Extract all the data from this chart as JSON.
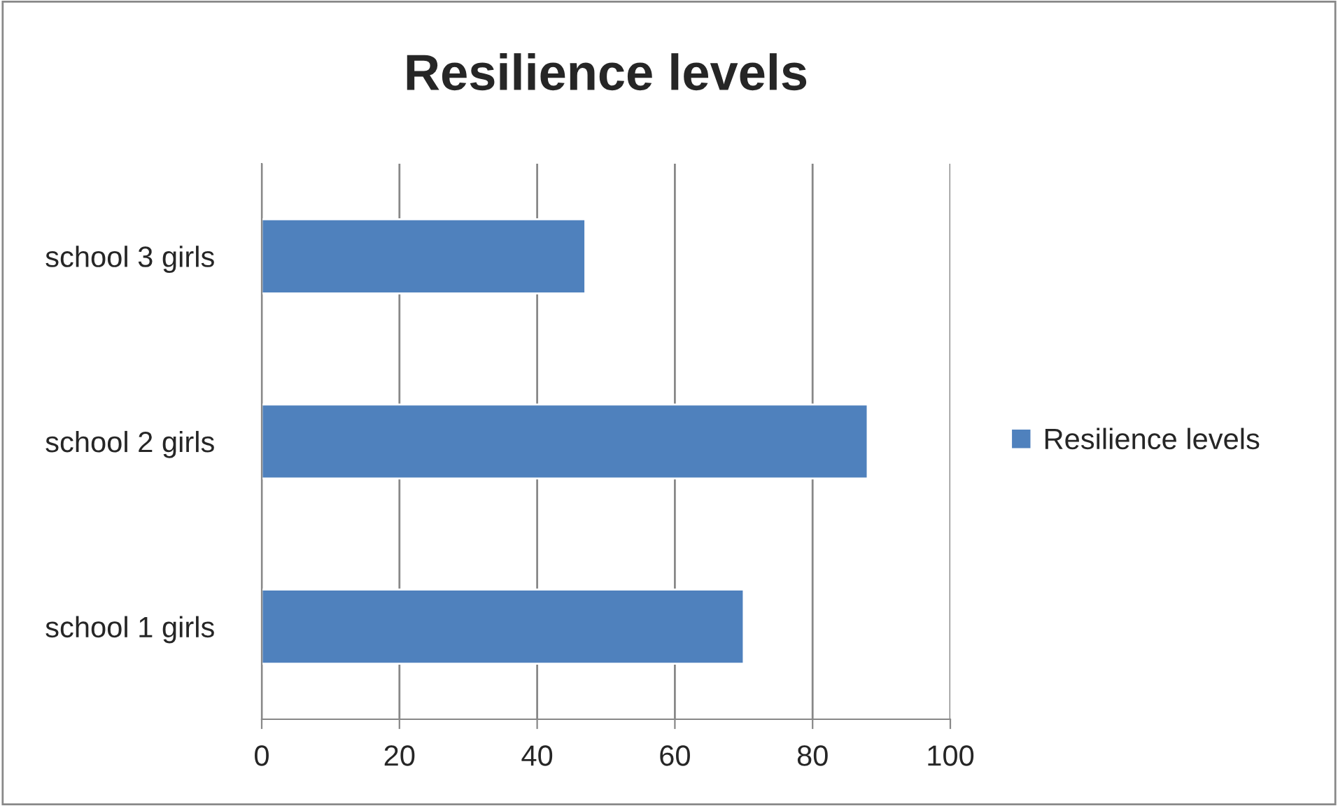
{
  "chart_data": {
    "type": "bar",
    "orientation": "horizontal",
    "title": "Resilience levels",
    "categories": [
      "school 3 girls",
      "school 2 girls",
      "school 1 girls"
    ],
    "series": [
      {
        "name": "Resilience levels",
        "color": "#4f81bd",
        "values": [
          47,
          88,
          70
        ]
      }
    ],
    "xlim": [
      0,
      100
    ],
    "xticks": [
      0,
      20,
      40,
      60,
      80,
      100
    ],
    "grid": "x",
    "legend": "right"
  }
}
